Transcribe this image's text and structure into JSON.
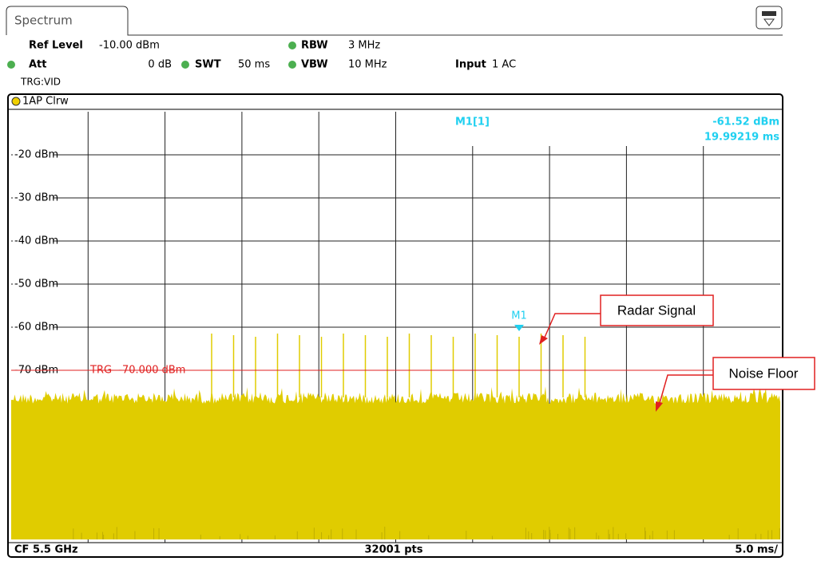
{
  "tab": "Spectrum",
  "settings": {
    "ref_level": {
      "label": "Ref Level",
      "value": "-10.00 dBm"
    },
    "att": {
      "label": "Att",
      "value": "0 dB"
    },
    "swt": {
      "label": "SWT",
      "value": "50 ms"
    },
    "rbw": {
      "label": "RBW",
      "value": "3 MHz"
    },
    "vbw": {
      "label": "VBW",
      "value": "10 MHz"
    },
    "input": {
      "label": "Input",
      "value": "1 AC"
    },
    "trigger": "TRG:VID"
  },
  "trace": "1AP Clrw",
  "y_labels": [
    "-20 dBm",
    "-30 dBm",
    "-40 dBm",
    "-50 dBm",
    "-60 dBm",
    "-70 dBm"
  ],
  "marker": {
    "name": "M1",
    "readout": "M1[1]",
    "level": "-61.52 dBm",
    "time": "19.99219 ms"
  },
  "trigger_line": "TRG  -70.000 dBm",
  "footer": {
    "center_freq": "CF 5.5 GHz",
    "points": "32001 pts",
    "time_div": "5.0 ms/"
  },
  "annotations": [
    "Radar Signal",
    "Noise Floor"
  ]
}
